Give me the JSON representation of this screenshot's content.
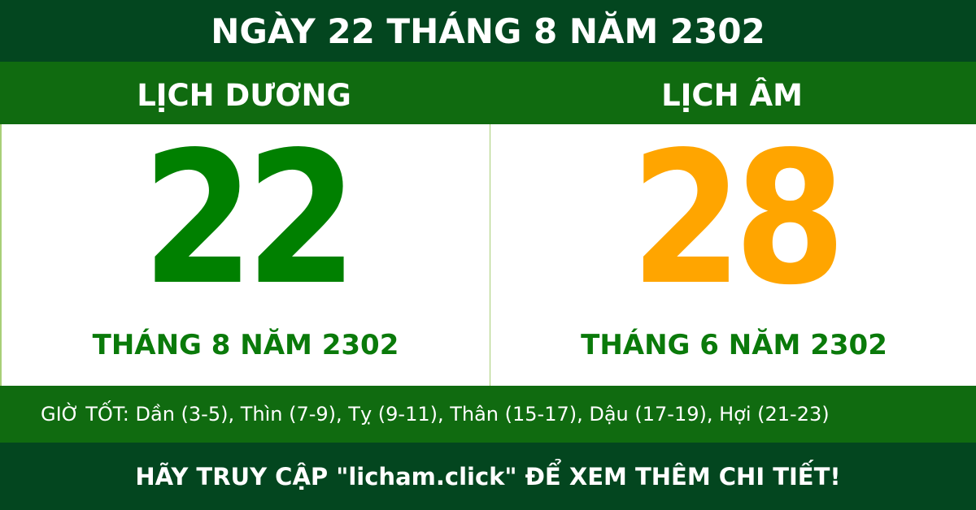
{
  "header": {
    "title": "NGÀY 22 THÁNG 8 NĂM 2302"
  },
  "solar": {
    "label": "LỊCH DƯƠNG",
    "day": "22",
    "month_year": "THÁNG 8 NĂM 2302",
    "color": "#008000"
  },
  "lunar": {
    "label": "LỊCH ÂM",
    "day": "28",
    "month_year": "THÁNG 6 NĂM 2302",
    "color": "#ffa500"
  },
  "good_hours": "GIỜ TỐT: Dần (3-5), Thìn (7-9), Tỵ (9-11), Thân (15-17), Dậu (17-19), Hợi (21-23)",
  "footer": {
    "text": "HÃY TRUY CẬP \"licham.click\" ĐỂ XEM THÊM CHI TIẾT!"
  }
}
